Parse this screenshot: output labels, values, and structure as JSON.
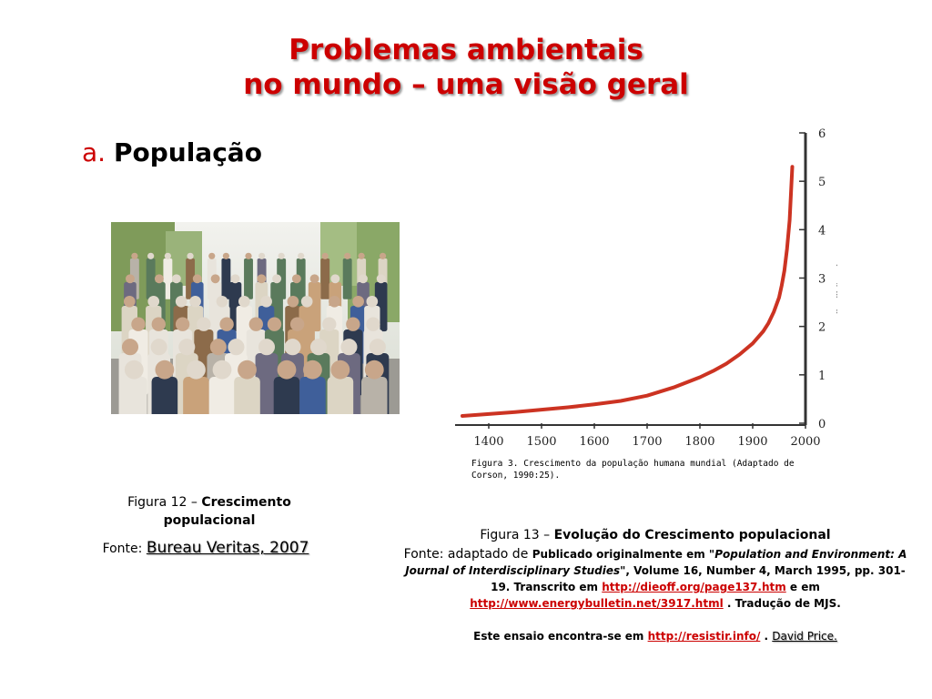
{
  "slide": {
    "title_line1": "Problemas ambientais",
    "title_line2": "no mundo – uma visão geral",
    "bullet_mark": "a.",
    "bullet_label": "População"
  },
  "figure12": {
    "caption_prefix": "Figura 12 – ",
    "caption_bold": "Crescimento populacional",
    "source_prefix": "Fonte: ",
    "source_text": "Bureau Veritas, 2007"
  },
  "figure13": {
    "chart_caption": "Figura 3. Crescimento da população humana mundial (Adaptado de Corson, 1990:25).",
    "caption_prefix": "Figura 13 – ",
    "caption_bold": "Evolução do Crescimento populacional",
    "source_lead": "Fonte: adaptado de ",
    "source_part1": "Publicado originalmente em \"",
    "source_italic": "Population and Environment: A Journal of Interdisciplinary Studies",
    "source_part2": "\", Volume 16, Number 4, March 1995, pp. 301-19.   Transcrito em ",
    "link1": "http://dieoff.org/page137.htm",
    "source_part3": " e em ",
    "link2": "http://www.energybulletin.net/3917.html",
    "source_part4": " . Tradução de MJS.",
    "essay_prefix": "Este ensaio encontra-se em ",
    "essay_link": "http://resistir.info/",
    "essay_sep": " .  ",
    "essay_author": "David Price."
  },
  "chart_data": {
    "type": "line",
    "ylabel": "Mil milhões de pessoas",
    "xlim": [
      1350,
      2000
    ],
    "ylim": [
      0,
      6
    ],
    "xticks": [
      1400,
      1500,
      1600,
      1700,
      1800,
      1900,
      2000
    ],
    "yticks": [
      0,
      1,
      2,
      3,
      4,
      5,
      6
    ],
    "series": [
      {
        "color": "#cc3322",
        "x": [
          1350,
          1400,
          1450,
          1500,
          1550,
          1600,
          1650,
          1700,
          1750,
          1800,
          1825,
          1850,
          1875,
          1900,
          1920,
          1930,
          1940,
          1950,
          1955,
          1960,
          1965,
          1970,
          1975
        ],
        "y": [
          0.15,
          0.19,
          0.23,
          0.28,
          0.33,
          0.39,
          0.46,
          0.57,
          0.74,
          0.95,
          1.08,
          1.23,
          1.42,
          1.65,
          1.9,
          2.07,
          2.3,
          2.6,
          2.85,
          3.15,
          3.6,
          4.2,
          5.3
        ]
      }
    ]
  }
}
